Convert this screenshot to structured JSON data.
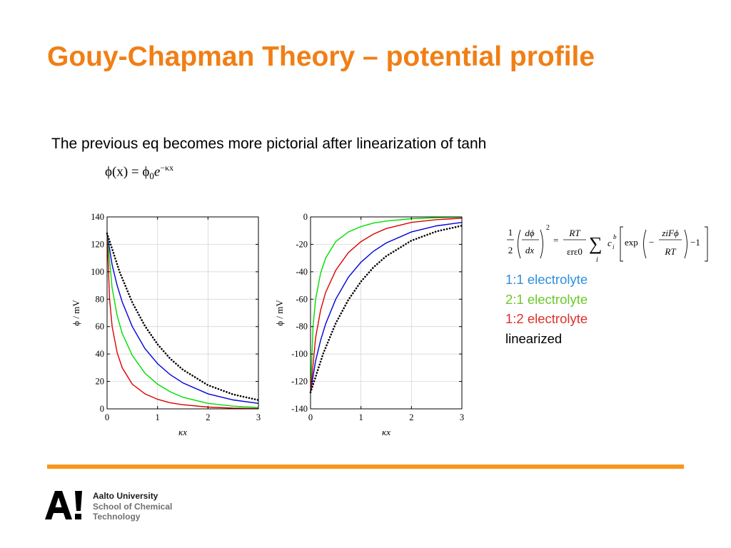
{
  "slide": {
    "title": "Gouy-Chapman Theory – potential profile",
    "subtitle": "The previous eq becomes more pictorial after linearization of tanh",
    "equation": {
      "lhs": "ϕ(x) = ϕ",
      "sub": "0",
      "base": "e",
      "exponent": "−κx"
    }
  },
  "formula": {
    "half_num": "1",
    "half_den": "2",
    "d_num": "dϕ",
    "d_den": "dx",
    "power": "2",
    "equals": "=",
    "rt_num": "RT",
    "rt_den": "εrε0",
    "sum": "∑",
    "sum_index": "i",
    "conc": "c",
    "conc_sub": "i",
    "conc_sup": "b",
    "exp": "exp",
    "minus": "−",
    "zf_num": "ziFϕ",
    "zf_den": "RT",
    "minus_one": "−1"
  },
  "legend": [
    {
      "label": "1:1 electrolyte",
      "color": "#2f8fe0"
    },
    {
      "label": "2:1 electrolyte",
      "color": "#6bc82a"
    },
    {
      "label": "1:2 electrolyte",
      "color": "#e0302a"
    },
    {
      "label": "linearized",
      "color": "#000000"
    }
  ],
  "footer": {
    "logo_text": "A!",
    "university": "Aalto University",
    "school_line1": "School of Chemical",
    "school_line2": "Technology"
  },
  "chart_data": [
    {
      "type": "line",
      "xlabel": "κx",
      "ylabel": "ϕ / mV",
      "xlim": [
        0,
        3
      ],
      "ylim": [
        0,
        140
      ],
      "xticks": [
        "0",
        "1",
        "2",
        "3"
      ],
      "yticks": [
        "0",
        "20",
        "40",
        "60",
        "80",
        "100",
        "120",
        "140"
      ],
      "grid": true,
      "legend": "none",
      "series": [
        {
          "color": "#0000dd",
          "style": "solid",
          "x": [
            0,
            0.1,
            0.2,
            0.3,
            0.5,
            0.75,
            1,
            1.25,
            1.5,
            2,
            2.5,
            3
          ],
          "y": [
            128,
            105,
            90,
            78,
            60,
            44,
            33,
            25,
            19,
            11,
            6.5,
            4
          ]
        },
        {
          "color": "#00dd00",
          "style": "solid",
          "x": [
            0,
            0.1,
            0.2,
            0.3,
            0.5,
            0.75,
            1,
            1.25,
            1.5,
            2,
            2.5,
            3
          ],
          "y": [
            128,
            88,
            68,
            55,
            39,
            26,
            18,
            12.5,
            8.5,
            4,
            2,
            1
          ]
        },
        {
          "color": "#dd0000",
          "style": "solid",
          "x": [
            0,
            0.05,
            0.1,
            0.2,
            0.3,
            0.5,
            0.75,
            1,
            1.25,
            1.5,
            2,
            2.5,
            3
          ],
          "y": [
            128,
            80,
            60,
            41,
            30,
            18,
            11,
            7,
            4.5,
            3,
            1.3,
            0.5,
            0.2
          ]
        },
        {
          "color": "#000000",
          "style": "dotted",
          "x": [
            0,
            0.25,
            0.5,
            0.75,
            1,
            1.25,
            1.5,
            2,
            2.5,
            3
          ],
          "y": [
            128,
            99.7,
            77.6,
            60.5,
            47.1,
            36.7,
            28.6,
            17.3,
            10.5,
            6.4
          ]
        }
      ]
    },
    {
      "type": "line",
      "xlabel": "κx",
      "ylabel": "ϕ / mV",
      "xlim": [
        0,
        3
      ],
      "ylim": [
        -140,
        0
      ],
      "xticks": [
        "0",
        "1",
        "2",
        "3"
      ],
      "yticks": [
        "0",
        "-20",
        "-40",
        "-60",
        "-80",
        "-100",
        "-120",
        "-140"
      ],
      "grid": true,
      "legend": "none",
      "series": [
        {
          "color": "#0000dd",
          "style": "solid",
          "x": [
            0,
            0.1,
            0.2,
            0.3,
            0.5,
            0.75,
            1,
            1.25,
            1.5,
            2,
            2.5,
            3
          ],
          "y": [
            -128,
            -105,
            -90,
            -78,
            -60,
            -44,
            -33,
            -25,
            -19,
            -11,
            -6.5,
            -4
          ]
        },
        {
          "color": "#00dd00",
          "style": "solid",
          "x": [
            0,
            0.05,
            0.1,
            0.2,
            0.3,
            0.5,
            0.75,
            1,
            1.25,
            1.5,
            2,
            2.5,
            3
          ],
          "y": [
            -128,
            -80,
            -60,
            -41,
            -30,
            -18,
            -11,
            -7,
            -4.5,
            -3,
            -1.3,
            -0.5,
            -0.2
          ]
        },
        {
          "color": "#dd0000",
          "style": "solid",
          "x": [
            0,
            0.1,
            0.2,
            0.3,
            0.5,
            0.75,
            1,
            1.25,
            1.5,
            2,
            2.5,
            3
          ],
          "y": [
            -128,
            -88,
            -68,
            -55,
            -39,
            -26,
            -18,
            -12.5,
            -8.5,
            -4,
            -2,
            -1
          ]
        },
        {
          "color": "#000000",
          "style": "dotted",
          "x": [
            0,
            0.25,
            0.5,
            0.75,
            1,
            1.25,
            1.5,
            2,
            2.5,
            3
          ],
          "y": [
            -128,
            -99.7,
            -77.6,
            -60.5,
            -47.1,
            -36.7,
            -28.6,
            -17.3,
            -10.5,
            -6.4
          ]
        }
      ]
    }
  ]
}
